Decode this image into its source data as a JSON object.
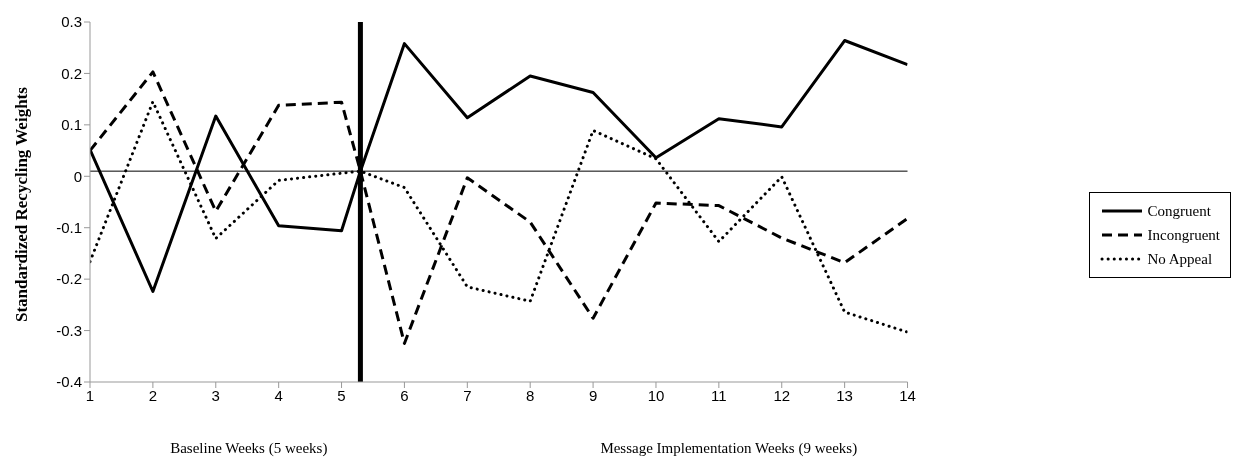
{
  "chart_data": {
    "type": "line",
    "ylabel": "Standardized Recycling Weights",
    "annotations": [
      "Baseline Weeks (5 weeks)",
      "Message Implementation Weeks (9 weeks)"
    ],
    "x": [
      1,
      2,
      3,
      4,
      5,
      5.3,
      6,
      7,
      8,
      9,
      10,
      11,
      12,
      13,
      14
    ],
    "series": [
      {
        "name": "Congruent",
        "color": "#000000",
        "line_style": "solid",
        "values": [
          0.052,
          -0.224,
          0.117,
          -0.096,
          -0.106,
          0.01,
          0.258,
          0.114,
          0.195,
          0.163,
          0.036,
          0.112,
          0.096,
          0.264,
          0.217
        ]
      },
      {
        "name": "Incongruent",
        "color": "#000000",
        "line_style": "dashed",
        "values": [
          0.05,
          0.203,
          -0.068,
          0.138,
          0.144,
          0.01,
          -0.325,
          -0.003,
          -0.089,
          -0.276,
          -0.052,
          -0.057,
          -0.12,
          -0.168,
          -0.082
        ]
      },
      {
        "name": "No Appeal",
        "color": "#000000",
        "line_style": "dotted",
        "values": [
          -0.166,
          0.145,
          -0.121,
          -0.008,
          0.006,
          0.01,
          -0.022,
          -0.215,
          -0.243,
          0.089,
          0.034,
          -0.127,
          -0.001,
          -0.264,
          -0.303
        ]
      }
    ],
    "xlim": [
      1,
      14
    ],
    "xticks": [
      1,
      2,
      3,
      4,
      5,
      6,
      7,
      8,
      9,
      10,
      11,
      12,
      13,
      14
    ],
    "ylim": [
      -0.4,
      0.3
    ],
    "yticks": [
      -0.4,
      -0.3,
      -0.2,
      -0.1,
      0,
      0.1,
      0.2,
      0.3
    ],
    "ref_lines": [
      {
        "axis": "x",
        "value": 5.3,
        "color": "#000000"
      },
      {
        "axis": "y",
        "value": 0.01,
        "color": "#000000"
      }
    ],
    "legend": "right"
  }
}
